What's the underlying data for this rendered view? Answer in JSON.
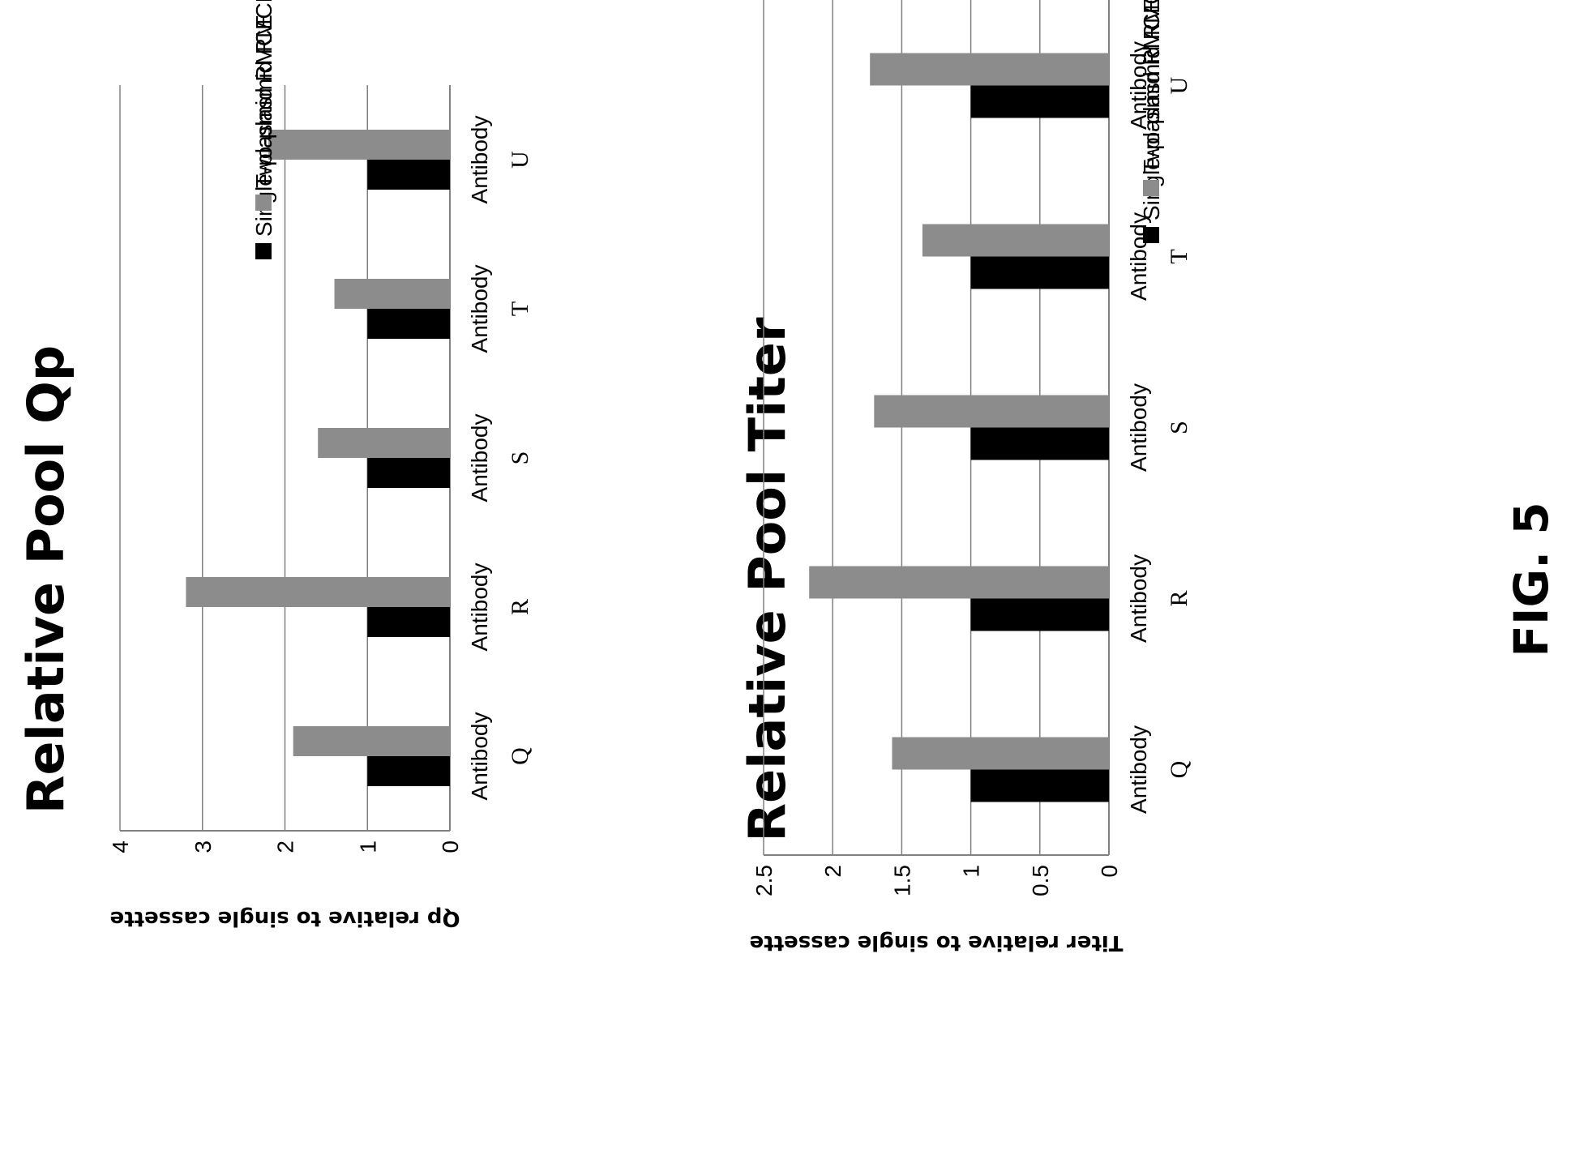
{
  "figure_label": "FIG. 5",
  "colors": {
    "single": "#000000",
    "two": "#8c8c8c",
    "grid": "#808080",
    "axis": "#808080"
  },
  "chart_data": [
    {
      "type": "bar",
      "orientation": "horizontal",
      "title": "Relative Pool Qp",
      "ylabel": "Qp relative to single cassette",
      "xlabel": "",
      "categories": [
        {
          "line1": "Antibody",
          "line2": "Q"
        },
        {
          "line1": "Antibody",
          "line2": "R"
        },
        {
          "line1": "Antibody",
          "line2": "S"
        },
        {
          "line1": "Antibody",
          "line2": "T"
        },
        {
          "line1": "Antibody",
          "line2": "U"
        }
      ],
      "series": [
        {
          "name": "Single-plasmid RMCE",
          "values": [
            1,
            1,
            1,
            1,
            1
          ]
        },
        {
          "name": "Two-plasmid RMCE",
          "values": [
            1.9,
            3.2,
            1.6,
            1.4,
            2.2
          ]
        }
      ],
      "ylim": [
        0,
        4
      ],
      "ticks": [
        "0",
        "1",
        "2",
        "3",
        "4"
      ],
      "tick_values": [
        0,
        1,
        2,
        3,
        4
      ],
      "grid": true,
      "legend_position": "right"
    },
    {
      "type": "bar",
      "orientation": "horizontal",
      "title": "Relative Pool Titer",
      "ylabel": "Titer relative to single cassette",
      "xlabel": "",
      "categories": [
        {
          "line1": "Antibody",
          "line2": "Q"
        },
        {
          "line1": "Antibody",
          "line2": "R"
        },
        {
          "line1": "Antibody",
          "line2": "S"
        },
        {
          "line1": "Antibody",
          "line2": "T"
        },
        {
          "line1": "Antibody",
          "line2": "U"
        }
      ],
      "series": [
        {
          "name": "Single-plasmid RMCE",
          "values": [
            1,
            1,
            1,
            1,
            1
          ]
        },
        {
          "name": "Two-plasmid RMCE",
          "values": [
            1.57,
            2.17,
            1.7,
            1.35,
            1.73
          ]
        }
      ],
      "ylim": [
        0,
        2.5
      ],
      "ticks": [
        "0",
        "0.5",
        "1",
        "1.5",
        "2",
        "2.5"
      ],
      "tick_values": [
        0,
        0.5,
        1,
        1.5,
        2,
        2.5
      ],
      "grid": true,
      "legend_position": "right"
    }
  ]
}
